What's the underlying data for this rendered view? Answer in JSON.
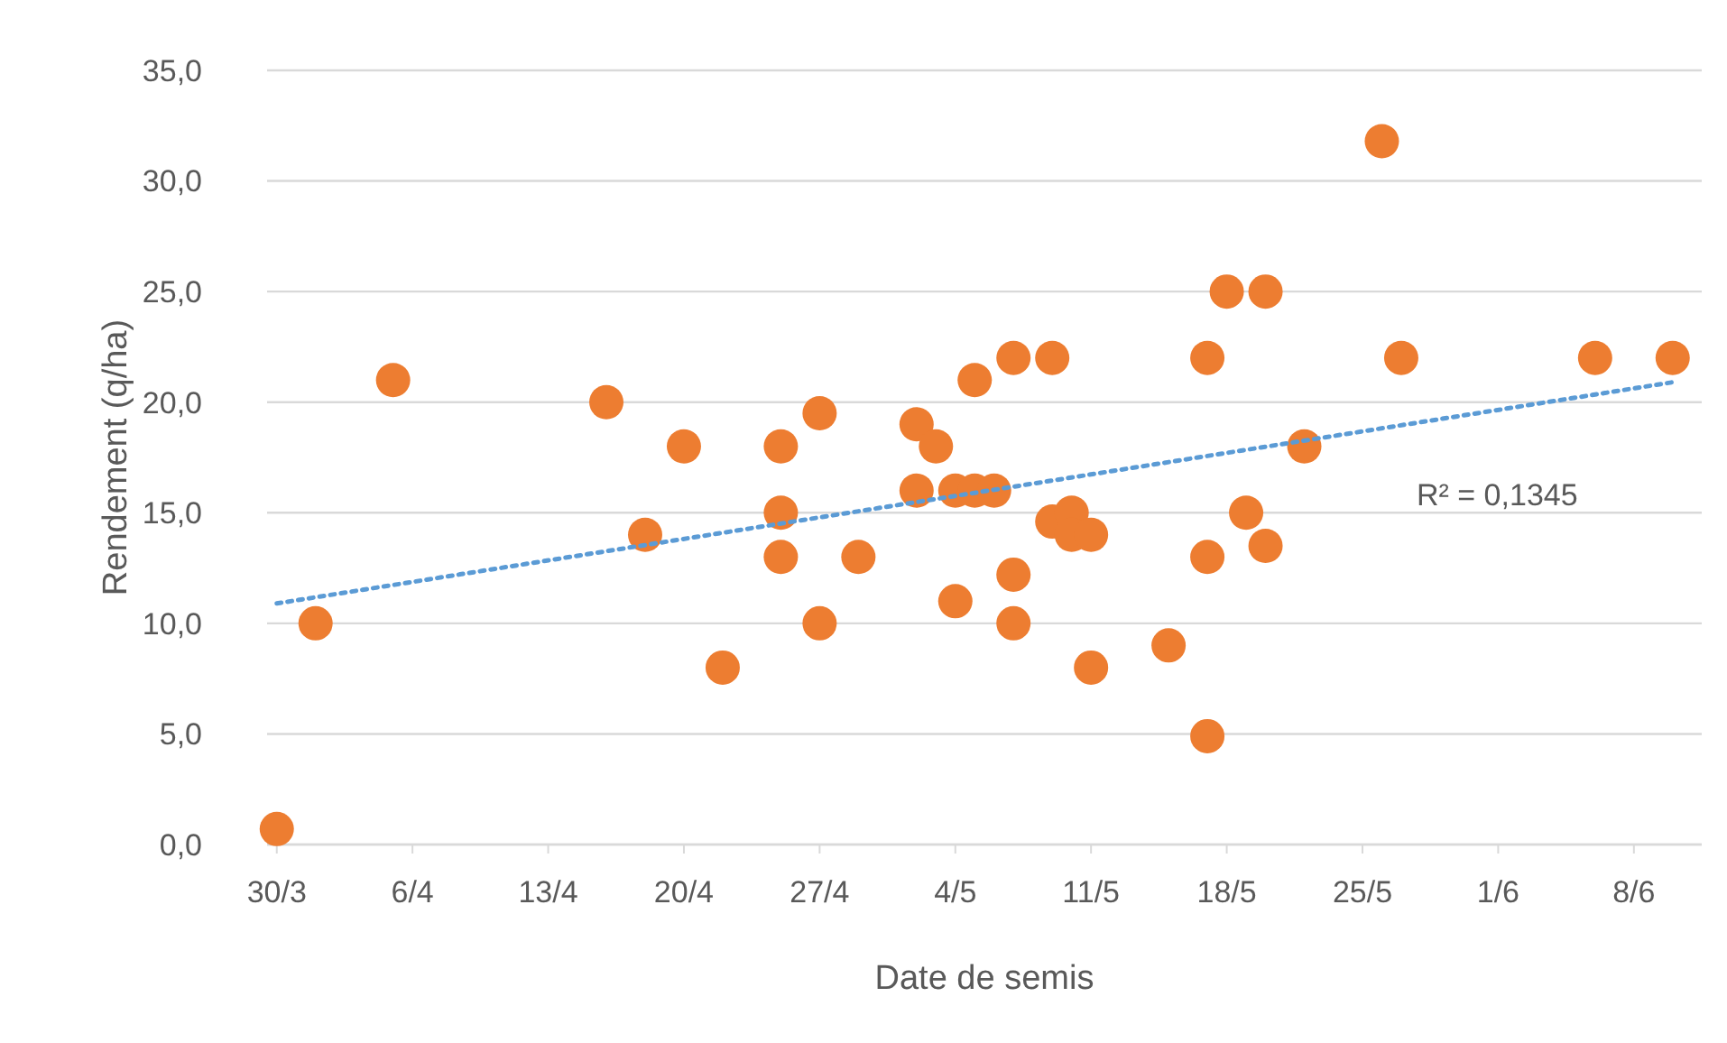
{
  "chart_data": {
    "type": "scatter",
    "xlabel": "Date de semis",
    "ylabel": "Rendement (q/ha)",
    "xlim": [
      "--03-29T12:00",
      "--06-11T12:00"
    ],
    "xticks": [
      {
        "value": "--03-30",
        "label": "30/3"
      },
      {
        "value": "--04-06",
        "label": "6/4"
      },
      {
        "value": "--04-13",
        "label": "13/4"
      },
      {
        "value": "--04-20",
        "label": "20/4"
      },
      {
        "value": "--04-27",
        "label": "27/4"
      },
      {
        "value": "--05-04",
        "label": "4/5"
      },
      {
        "value": "--05-11",
        "label": "11/5"
      },
      {
        "value": "--05-18",
        "label": "18/5"
      },
      {
        "value": "--05-25",
        "label": "25/5"
      },
      {
        "value": "--06-01",
        "label": "1/6"
      },
      {
        "value": "--06-08",
        "label": "8/6"
      }
    ],
    "ylim": [
      0,
      35
    ],
    "yticks": [
      {
        "value": 0,
        "label": "0,0"
      },
      {
        "value": 5,
        "label": "5,0"
      },
      {
        "value": 10,
        "label": "10,0"
      },
      {
        "value": 15,
        "label": "15,0"
      },
      {
        "value": 20,
        "label": "20,0"
      },
      {
        "value": 25,
        "label": "25,0"
      },
      {
        "value": 30,
        "label": "30,0"
      },
      {
        "value": 35,
        "label": "35,0"
      }
    ],
    "grid": "y",
    "series": [
      {
        "color": "#ed7d31",
        "marker": "circle",
        "x": [
          "--03-30",
          "--04-01",
          "--04-05",
          "--04-16",
          "--04-18",
          "--04-20",
          "--04-22",
          "--04-25",
          "--04-25",
          "--04-25",
          "--04-27",
          "--04-27",
          "--04-29",
          "--05-02",
          "--05-02",
          "--05-03",
          "--05-04",
          "--05-04",
          "--05-05",
          "--05-05",
          "--05-06",
          "--05-07",
          "--05-07",
          "--05-07",
          "--05-09",
          "--05-09",
          "--05-10",
          "--05-10",
          "--05-11",
          "--05-11",
          "--05-15",
          "--05-17",
          "--05-17",
          "--05-17",
          "--05-18",
          "--05-19",
          "--05-20",
          "--05-20",
          "--05-22",
          "--05-26",
          "--05-27",
          "--06-06",
          "--06-10"
        ],
        "values": [
          0.7,
          10,
          21,
          20,
          14,
          18,
          8,
          18,
          15,
          13,
          19.5,
          10,
          13,
          19,
          16,
          18,
          16,
          11,
          16,
          21,
          16,
          22,
          12.2,
          10,
          22,
          14.6,
          15,
          14,
          14,
          8,
          9,
          22,
          13,
          4.9,
          25,
          15,
          25,
          13.5,
          18,
          31.8,
          22,
          22,
          22
        ]
      },
      {
        "type": "line",
        "color": "#5b9bd5",
        "line_style": "dotted",
        "x": [
          "--03-30",
          "--06-10"
        ],
        "values": [
          10.9,
          20.9
        ]
      }
    ],
    "annotations": [
      "R² = 0,1345"
    ]
  }
}
